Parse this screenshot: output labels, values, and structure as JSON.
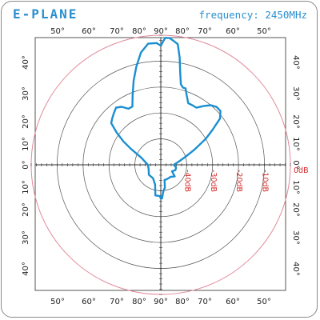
{
  "header": {
    "title": "E-PLANE",
    "frequency_label": "frequency: 2450MHz"
  },
  "colors": {
    "accent": "#2a8fcf",
    "trace": "#1a8fd0",
    "ring_label": "#d42a2a",
    "outer_ring": "#e08a9a",
    "grid": "#555555"
  },
  "chart_data": {
    "type": "polar",
    "title": "E-PLANE",
    "subtitle": "frequency: 2450MHz",
    "angle_ticks_top": [
      "50°",
      "60°",
      "70°",
      "80°",
      "90°",
      "80°",
      "70°",
      "60°",
      "50°"
    ],
    "angle_ticks_bottom": [
      "50°",
      "60°",
      "70°",
      "80°",
      "90°",
      "80°",
      "70°",
      "60°",
      "50°"
    ],
    "angle_ticks_left": [
      "40°",
      "30°",
      "20°",
      "10°",
      "0°",
      "10°",
      "20°",
      "30°",
      "40°"
    ],
    "angle_ticks_right": [
      "40°",
      "30°",
      "20°",
      "10°",
      "0°",
      "10°",
      "20°",
      "30°",
      "40°"
    ],
    "radial_labels": [
      "-40dB",
      "-30dB",
      "-20dB",
      "-10dB",
      "0dB"
    ],
    "radial_range_db": [
      -50,
      0
    ],
    "series": [
      {
        "points_deg_db": [
          [
            0,
            -4
          ],
          [
            2,
            -1
          ],
          [
            4,
            -1
          ],
          [
            6,
            -2
          ],
          [
            8,
            -3
          ],
          [
            10,
            -8
          ],
          [
            12,
            -14
          ],
          [
            14,
            -18
          ],
          [
            16,
            -19
          ],
          [
            18,
            -19
          ],
          [
            20,
            -21
          ],
          [
            24,
            -24
          ],
          [
            28,
            -24
          ],
          [
            32,
            -24
          ],
          [
            36,
            -22
          ],
          [
            40,
            -20
          ],
          [
            44,
            -19
          ],
          [
            48,
            -19
          ],
          [
            52,
            -21
          ],
          [
            56,
            -26
          ],
          [
            60,
            -30
          ],
          [
            66,
            -36
          ],
          [
            72,
            -40
          ],
          [
            80,
            -43
          ],
          [
            90,
            -45
          ],
          [
            100,
            -44
          ],
          [
            110,
            -44
          ],
          [
            120,
            -45
          ],
          [
            130,
            -43
          ],
          [
            140,
            -44
          ],
          [
            150,
            -44
          ],
          [
            160,
            -44
          ],
          [
            166,
            -44
          ],
          [
            170,
            -41
          ],
          [
            174,
            -40
          ],
          [
            178,
            -37
          ],
          [
            180,
            -37
          ],
          [
            182,
            -38
          ],
          [
            186,
            -38
          ],
          [
            190,
            -38
          ],
          [
            196,
            -42
          ],
          [
            210,
            -44
          ],
          [
            230,
            -44
          ],
          [
            250,
            -45
          ],
          [
            270,
            -45
          ],
          [
            290,
            -42
          ],
          [
            298,
            -37
          ],
          [
            302,
            -33
          ],
          [
            306,
            -29
          ],
          [
            310,
            -25
          ],
          [
            314,
            -24
          ],
          [
            318,
            -23
          ],
          [
            322,
            -22
          ],
          [
            326,
            -23
          ],
          [
            330,
            -25
          ],
          [
            334,
            -25
          ],
          [
            338,
            -21
          ],
          [
            342,
            -16
          ],
          [
            346,
            -11
          ],
          [
            350,
            -6
          ],
          [
            354,
            -3
          ],
          [
            358,
            -3
          ],
          [
            360,
            -4
          ]
        ]
      }
    ]
  }
}
